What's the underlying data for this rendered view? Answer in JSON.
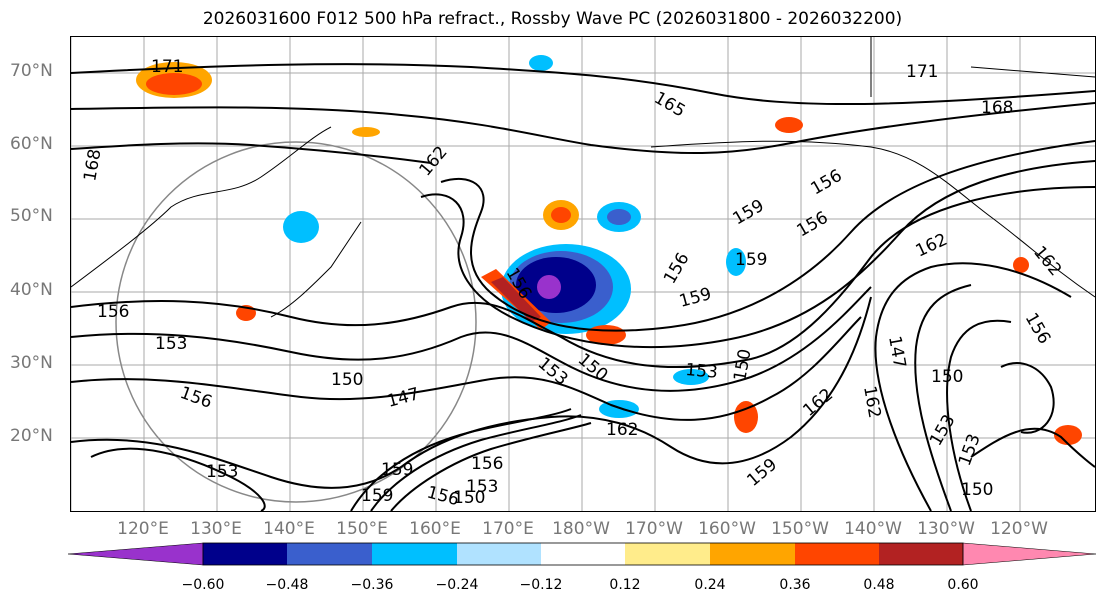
{
  "title": "2026031600 F012 500 hPa refract., Rossby Wave PC (2026031800 - 2026032200)",
  "lat_labels": [
    "70°N",
    "60°N",
    "50°N",
    "40°N",
    "30°N",
    "20°N"
  ],
  "lon_labels": [
    "120°E",
    "130°E",
    "140°E",
    "150°E",
    "160°E",
    "170°E",
    "180°W",
    "170°W",
    "160°W",
    "150°W",
    "140°W",
    "130°W",
    "120°W"
  ],
  "contour_labels": [
    "171",
    "168",
    "165",
    "162",
    "171",
    "168",
    "168",
    "162",
    "159",
    "156",
    "156",
    "159",
    "156",
    "159",
    "162",
    "156",
    "153",
    "150",
    "147",
    "156",
    "153",
    "150",
    "153",
    "156",
    "162",
    "153",
    "150",
    "162",
    "159",
    "156",
    "159",
    "156",
    "153",
    "150",
    "159",
    "150",
    "153",
    "153",
    "150",
    "147",
    "153",
    "156",
    "162",
    "153"
  ],
  "colorbar": {
    "colors": [
      "#9932cc",
      "#00008b",
      "#3a5fcd",
      "#00bfff",
      "#b0e2ff",
      "#ffffff",
      "#ffec8b",
      "#ffa500",
      "#ff4500",
      "#b22222",
      "#ff88b0"
    ],
    "ticks": [
      "−0.60",
      "−0.48",
      "−0.36",
      "−0.24",
      "−0.12",
      "0.12",
      "0.24",
      "0.36",
      "0.48",
      "0.60"
    ]
  },
  "colors": {
    "axis_label": "#777777",
    "grid": "#aaaaaa",
    "contour": "#000000"
  }
}
